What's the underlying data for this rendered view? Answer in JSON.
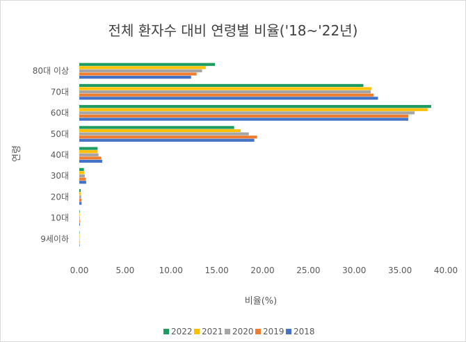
{
  "chart_data": {
    "type": "bar",
    "orientation": "horizontal",
    "title": "전체 환자수 대비 연령별 비율('18~'22년)",
    "xlabel": "비율(%)",
    "ylabel": "연령",
    "xlim": [
      0,
      40
    ],
    "xticks": [
      "0.00",
      "5.00",
      "10.00",
      "15.00",
      "20.00",
      "25.00",
      "30.00",
      "35.00",
      "40.00"
    ],
    "grid": false,
    "legend_position": "bottom",
    "categories": [
      "80대 이상",
      "70대",
      "60대",
      "50대",
      "40대",
      "30대",
      "20대",
      "10대",
      "9세이하"
    ],
    "series": [
      {
        "name": "2022",
        "color": "#1e9b5f",
        "values": [
          14.8,
          31.0,
          38.4,
          16.9,
          2.0,
          0.5,
          0.15,
          0.05,
          0.03
        ]
      },
      {
        "name": "2021",
        "color": "#ffc000",
        "values": [
          13.8,
          31.9,
          38.0,
          17.6,
          2.0,
          0.55,
          0.18,
          0.05,
          0.03
        ]
      },
      {
        "name": "2020",
        "color": "#a5a5a5",
        "values": [
          13.4,
          31.8,
          36.6,
          18.5,
          2.1,
          0.6,
          0.2,
          0.06,
          0.03
        ]
      },
      {
        "name": "2019",
        "color": "#ed7d31",
        "values": [
          12.8,
          32.1,
          35.9,
          19.4,
          2.4,
          0.7,
          0.22,
          0.06,
          0.03
        ]
      },
      {
        "name": "2018",
        "color": "#4472c4",
        "values": [
          12.2,
          32.6,
          35.9,
          19.1,
          2.5,
          0.75,
          0.25,
          0.07,
          0.03
        ]
      }
    ]
  }
}
